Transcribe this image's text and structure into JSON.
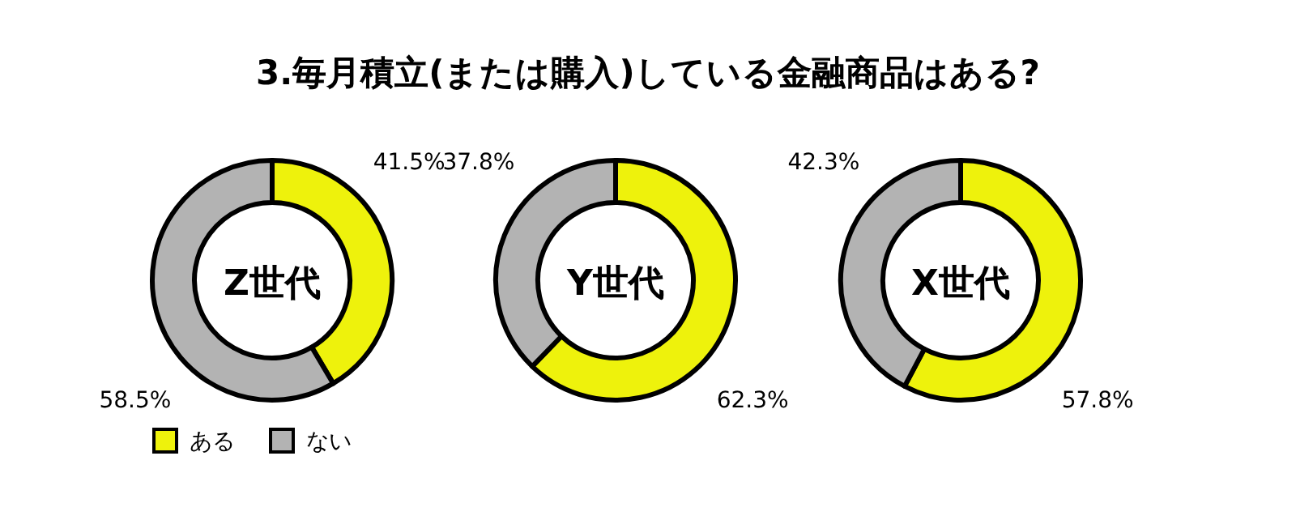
{
  "chart_data": [
    {
      "type": "donut",
      "title": "3.毎月積立(または購入)している金融商品はある?",
      "annotations": [
        "Z世代"
      ],
      "categories": [
        "ある",
        "ない"
      ],
      "values": [
        41.5,
        58.5
      ],
      "value_labels": [
        "41.5%",
        "58.5%"
      ],
      "colors": [
        "#eef20c",
        "#b3b3b3"
      ],
      "legend": "bottom left"
    },
    {
      "type": "donut",
      "annotations": [
        "Y世代"
      ],
      "categories": [
        null,
        null
      ],
      "values": [
        62.3,
        37.8
      ],
      "value_labels": [
        "62.3%",
        "37.8%"
      ],
      "colors": [
        "#eef20c",
        "#b3b3b3"
      ]
    },
    {
      "type": "donut",
      "annotations": [
        "X世代"
      ],
      "categories": [
        null,
        null
      ],
      "values": [
        57.8,
        42.3
      ],
      "value_labels": [
        "57.8%",
        "42.3%"
      ],
      "colors": [
        "#eef20c",
        "#b3b3b3"
      ]
    }
  ]
}
